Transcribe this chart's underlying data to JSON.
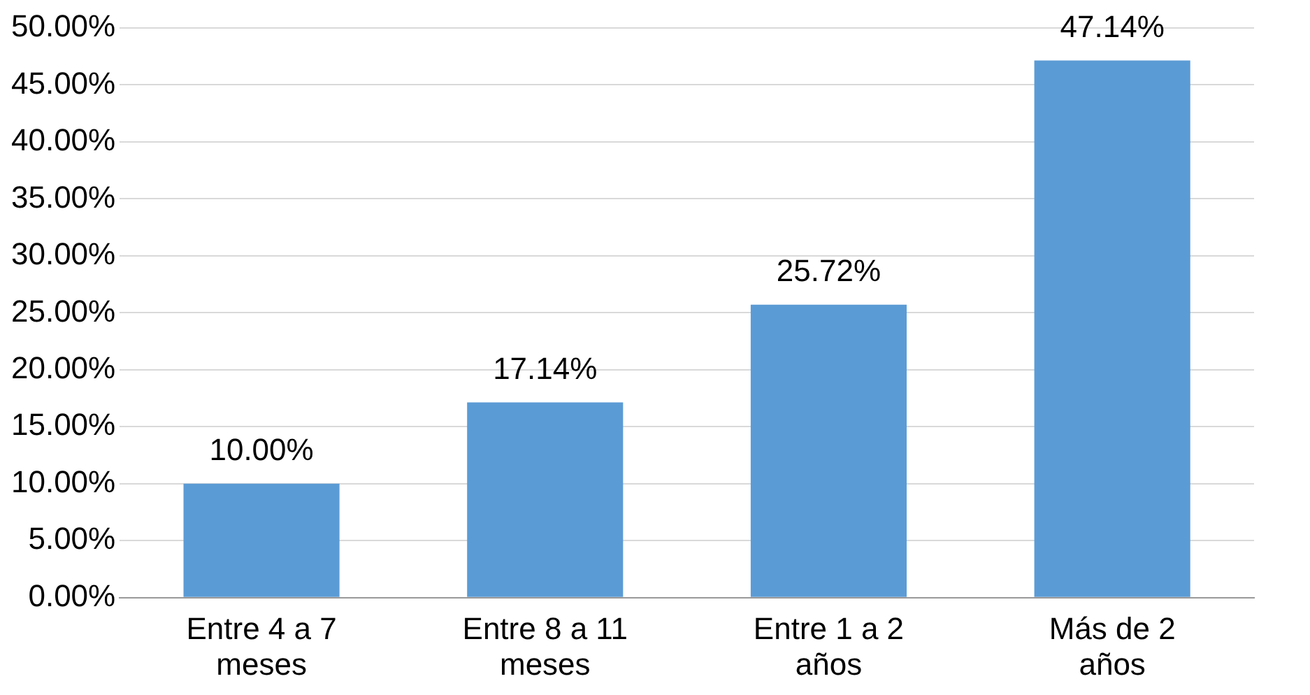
{
  "chart_data": {
    "type": "bar",
    "categories": [
      "Entre 4 a 7 meses",
      "Entre 8 a 11 meses",
      "Entre 1 a 2 años",
      "Más de 2 años"
    ],
    "values": [
      10.0,
      17.14,
      25.72,
      47.14
    ],
    "color": "#5b9bd5",
    "value_labels": [
      "10.00%",
      "17.14%",
      "25.72%",
      "47.14%"
    ],
    "ylim": [
      0,
      50
    ],
    "yticks": [
      {
        "value": 0,
        "label": "0.00%"
      },
      {
        "value": 5,
        "label": "5.00%"
      },
      {
        "value": 10,
        "label": "10.00%"
      },
      {
        "value": 15,
        "label": "15.00%"
      },
      {
        "value": 20,
        "label": "20.00%"
      },
      {
        "value": 25,
        "label": "25.00%"
      },
      {
        "value": 30,
        "label": "30.00%"
      },
      {
        "value": 35,
        "label": "35.00%"
      },
      {
        "value": 40,
        "label": "40.00%"
      },
      {
        "value": 45,
        "label": "45.00%"
      },
      {
        "value": 50,
        "label": "50.00%"
      }
    ],
    "grid": "y",
    "legend": false
  }
}
